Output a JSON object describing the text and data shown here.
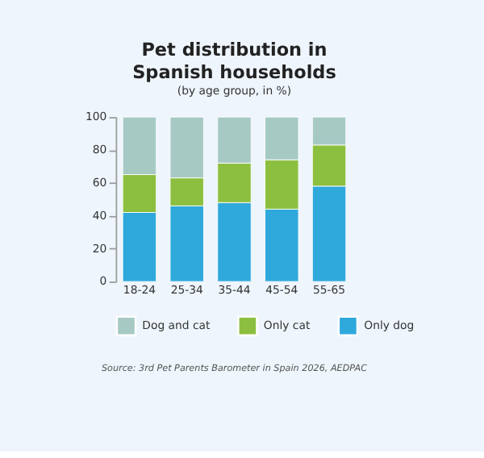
{
  "chart_data": {
    "type": "bar",
    "stacked": true,
    "title": "Pet distribution in Spanish households",
    "subtitle": "(by age group, in %)",
    "categories": [
      "18-24",
      "25-34",
      "35-44",
      "45-54",
      "55-65"
    ],
    "series": [
      {
        "name": "Only dog",
        "color": "#2fa8dc",
        "values": [
          42,
          46,
          48,
          44,
          58
        ]
      },
      {
        "name": "Only cat",
        "color": "#8cbf3f",
        "values": [
          23,
          17,
          24,
          30,
          25
        ]
      },
      {
        "name": "Dog and cat",
        "color": "#a6c9c4",
        "values": [
          35,
          37,
          28,
          26,
          17
        ]
      }
    ],
    "ylim": [
      0,
      100
    ],
    "yticks": [
      0,
      20,
      40,
      60,
      80,
      100
    ],
    "grid": false,
    "legend": "bottom",
    "annotations": [
      "Source: 3rd Pet Parents Barometer in Spain 2026, AEDPAC"
    ]
  }
}
